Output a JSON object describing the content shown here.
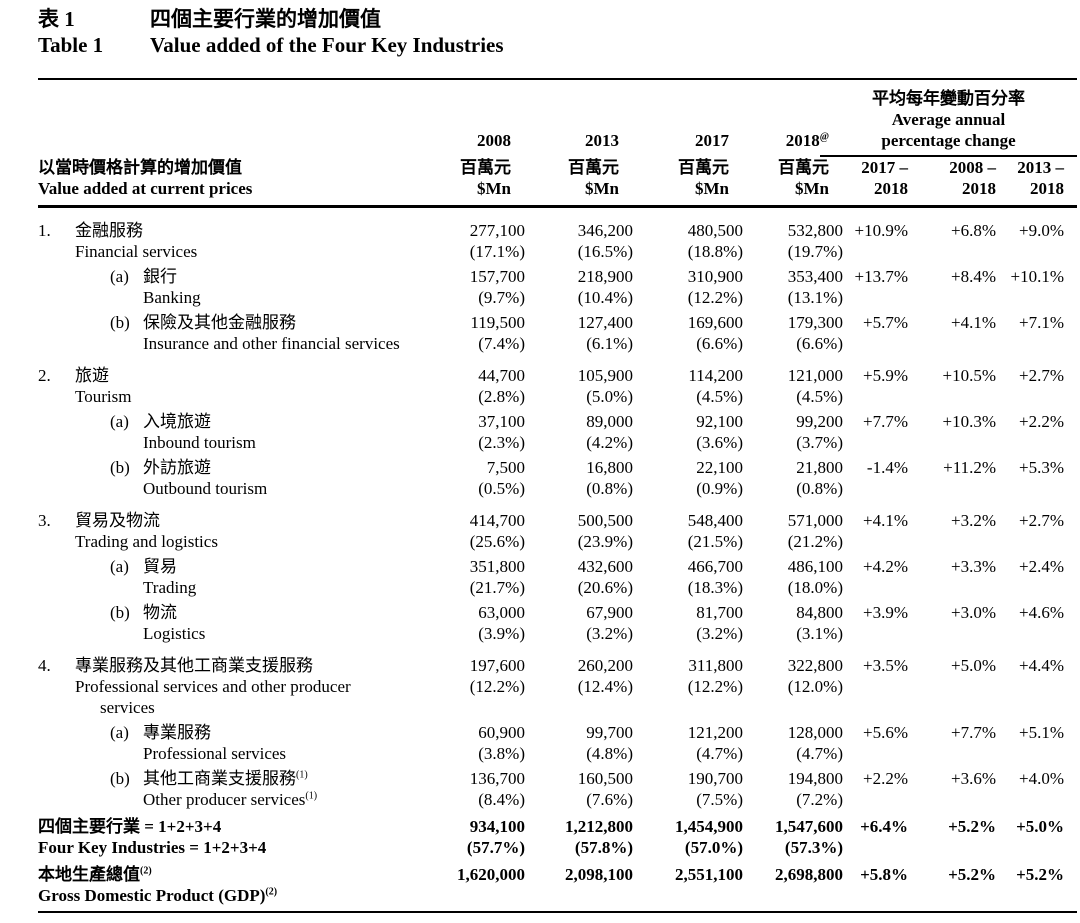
{
  "title": {
    "zh_label": "表 1",
    "zh": "四個主要行業的增加價值",
    "en_label": "Table 1",
    "en": "Value added of the Four Key Industries"
  },
  "header": {
    "left": {
      "zh": "以當時價格計算的增加價值",
      "en": "Value added at current prices"
    },
    "years": [
      {
        "label": "2008",
        "sup": ""
      },
      {
        "label": "2013",
        "sup": ""
      },
      {
        "label": "2017",
        "sup": ""
      },
      {
        "label": "2018",
        "sup": "@"
      }
    ],
    "unit": {
      "zh": "百萬元",
      "en": "$Mn"
    },
    "change_group": {
      "zh": "平均每年變動百分率",
      "en_line1": "Average annual",
      "en_line2": "percentage change"
    },
    "change_cols": [
      {
        "line1": "2017 –",
        "line2": "2018"
      },
      {
        "line1": "2008 –",
        "line2": "2018"
      },
      {
        "line1": "2013 –",
        "line2": "2018"
      }
    ]
  },
  "colors": {
    "text": "#000000",
    "background": "#ffffff",
    "rule": "#000000"
  },
  "rows": [
    {
      "id": "financial-services",
      "type": "main",
      "num": "1.",
      "zh": "金融服務",
      "en": "Financial services",
      "values": [
        [
          "277,100",
          "(17.1%)"
        ],
        [
          "346,200",
          "(16.5%)"
        ],
        [
          "480,500",
          "(18.8%)"
        ],
        [
          "532,800",
          "(19.7%)"
        ]
      ],
      "changes": [
        "+10.9%",
        "+6.8%",
        "+9.0%"
      ]
    },
    {
      "id": "banking",
      "type": "sub",
      "num": "(a)",
      "zh": "銀行",
      "en": "Banking",
      "values": [
        [
          "157,700",
          "(9.7%)"
        ],
        [
          "218,900",
          "(10.4%)"
        ],
        [
          "310,900",
          "(12.2%)"
        ],
        [
          "353,400",
          "(13.1%)"
        ]
      ],
      "changes": [
        "+13.7%",
        "+8.4%",
        "+10.1%"
      ]
    },
    {
      "id": "insurance-other-financial-services",
      "type": "sub",
      "num": "(b)",
      "zh": "保險及其他金融服務",
      "en": "Insurance and other financial services",
      "values": [
        [
          "119,500",
          "(7.4%)"
        ],
        [
          "127,400",
          "(6.1%)"
        ],
        [
          "169,600",
          "(6.6%)"
        ],
        [
          "179,300",
          "(6.6%)"
        ]
      ],
      "changes": [
        "+5.7%",
        "+4.1%",
        "+7.1%"
      ]
    },
    {
      "id": "tourism",
      "type": "main",
      "num": "2.",
      "zh": "旅遊",
      "en": "Tourism",
      "values": [
        [
          "44,700",
          "(2.8%)"
        ],
        [
          "105,900",
          "(5.0%)"
        ],
        [
          "114,200",
          "(4.5%)"
        ],
        [
          "121,000",
          "(4.5%)"
        ]
      ],
      "changes": [
        "+5.9%",
        "+10.5%",
        "+2.7%"
      ]
    },
    {
      "id": "inbound-tourism",
      "type": "sub",
      "num": "(a)",
      "zh": "入境旅遊",
      "en": "Inbound tourism",
      "values": [
        [
          "37,100",
          "(2.3%)"
        ],
        [
          "89,000",
          "(4.2%)"
        ],
        [
          "92,100",
          "(3.6%)"
        ],
        [
          "99,200",
          "(3.7%)"
        ]
      ],
      "changes": [
        "+7.7%",
        "+10.3%",
        "+2.2%"
      ]
    },
    {
      "id": "outbound-tourism",
      "type": "sub",
      "num": "(b)",
      "zh": "外訪旅遊",
      "en": "Outbound tourism",
      "values": [
        [
          "7,500",
          "(0.5%)"
        ],
        [
          "16,800",
          "(0.8%)"
        ],
        [
          "22,100",
          "(0.9%)"
        ],
        [
          "21,800",
          "(0.8%)"
        ]
      ],
      "changes": [
        "-1.4%",
        "+11.2%",
        "+5.3%"
      ]
    },
    {
      "id": "trading-and-logistics",
      "type": "main",
      "num": "3.",
      "zh": "貿易及物流",
      "en": "Trading and logistics",
      "values": [
        [
          "414,700",
          "(25.6%)"
        ],
        [
          "500,500",
          "(23.9%)"
        ],
        [
          "548,400",
          "(21.5%)"
        ],
        [
          "571,000",
          "(21.2%)"
        ]
      ],
      "changes": [
        "+4.1%",
        "+3.2%",
        "+2.7%"
      ]
    },
    {
      "id": "trading",
      "type": "sub",
      "num": "(a)",
      "zh": "貿易",
      "en": "Trading",
      "values": [
        [
          "351,800",
          "(21.7%)"
        ],
        [
          "432,600",
          "(20.6%)"
        ],
        [
          "466,700",
          "(18.3%)"
        ],
        [
          "486,100",
          "(18.0%)"
        ]
      ],
      "changes": [
        "+4.2%",
        "+3.3%",
        "+2.4%"
      ]
    },
    {
      "id": "logistics",
      "type": "sub",
      "num": "(b)",
      "zh": "物流",
      "en": "Logistics",
      "values": [
        [
          "63,000",
          "(3.9%)"
        ],
        [
          "67,900",
          "(3.2%)"
        ],
        [
          "81,700",
          "(3.2%)"
        ],
        [
          "84,800",
          "(3.1%)"
        ]
      ],
      "changes": [
        "+3.9%",
        "+3.0%",
        "+4.6%"
      ]
    },
    {
      "id": "professional-and-producer-services",
      "type": "main",
      "num": "4.",
      "zh": "專業服務及其他工商業支援服務",
      "en": "Professional services and other producer",
      "en2": "services",
      "values": [
        [
          "197,600",
          "(12.2%)"
        ],
        [
          "260,200",
          "(12.4%)"
        ],
        [
          "311,800",
          "(12.2%)"
        ],
        [
          "322,800",
          "(12.0%)"
        ]
      ],
      "changes": [
        "+3.5%",
        "+5.0%",
        "+4.4%"
      ]
    },
    {
      "id": "professional-services",
      "type": "sub",
      "num": "(a)",
      "zh": "專業服務",
      "en": "Professional services",
      "values": [
        [
          "60,900",
          "(3.8%)"
        ],
        [
          "99,700",
          "(4.8%)"
        ],
        [
          "121,200",
          "(4.7%)"
        ],
        [
          "128,000",
          "(4.7%)"
        ]
      ],
      "changes": [
        "+5.6%",
        "+7.7%",
        "+5.1%"
      ]
    },
    {
      "id": "other-producer-services",
      "type": "sub",
      "num": "(b)",
      "zh": "其他工商業支援服務",
      "zh_sup": "(1)",
      "en": "Other producer services",
      "en_sup": "(1)",
      "values": [
        [
          "136,700",
          "(8.4%)"
        ],
        [
          "160,500",
          "(7.6%)"
        ],
        [
          "190,700",
          "(7.5%)"
        ],
        [
          "194,800",
          "(7.2%)"
        ]
      ],
      "changes": [
        "+2.2%",
        "+3.6%",
        "+4.0%"
      ]
    },
    {
      "id": "four-key-industries-total",
      "type": "total",
      "zh": "四個主要行業  = 1+2+3+4",
      "en": "Four Key Industries = 1+2+3+4",
      "values": [
        [
          "934,100",
          "(57.7%)"
        ],
        [
          "1,212,800",
          "(57.8%)"
        ],
        [
          "1,454,900",
          "(57.0%)"
        ],
        [
          "1,547,600",
          "(57.3%)"
        ]
      ],
      "changes": [
        "+6.4%",
        "+5.2%",
        "+5.0%"
      ]
    },
    {
      "id": "gdp",
      "type": "gdp",
      "zh": "本地生產總值",
      "zh_sup": "(2)",
      "en": "Gross Domestic Product (GDP)",
      "en_sup": "(2)",
      "values": [
        [
          "1,620,000",
          ""
        ],
        [
          "2,098,100",
          ""
        ],
        [
          "2,551,100",
          ""
        ],
        [
          "2,698,800",
          ""
        ]
      ],
      "changes": [
        "+5.8%",
        "+5.2%",
        "+5.2%"
      ]
    }
  ]
}
